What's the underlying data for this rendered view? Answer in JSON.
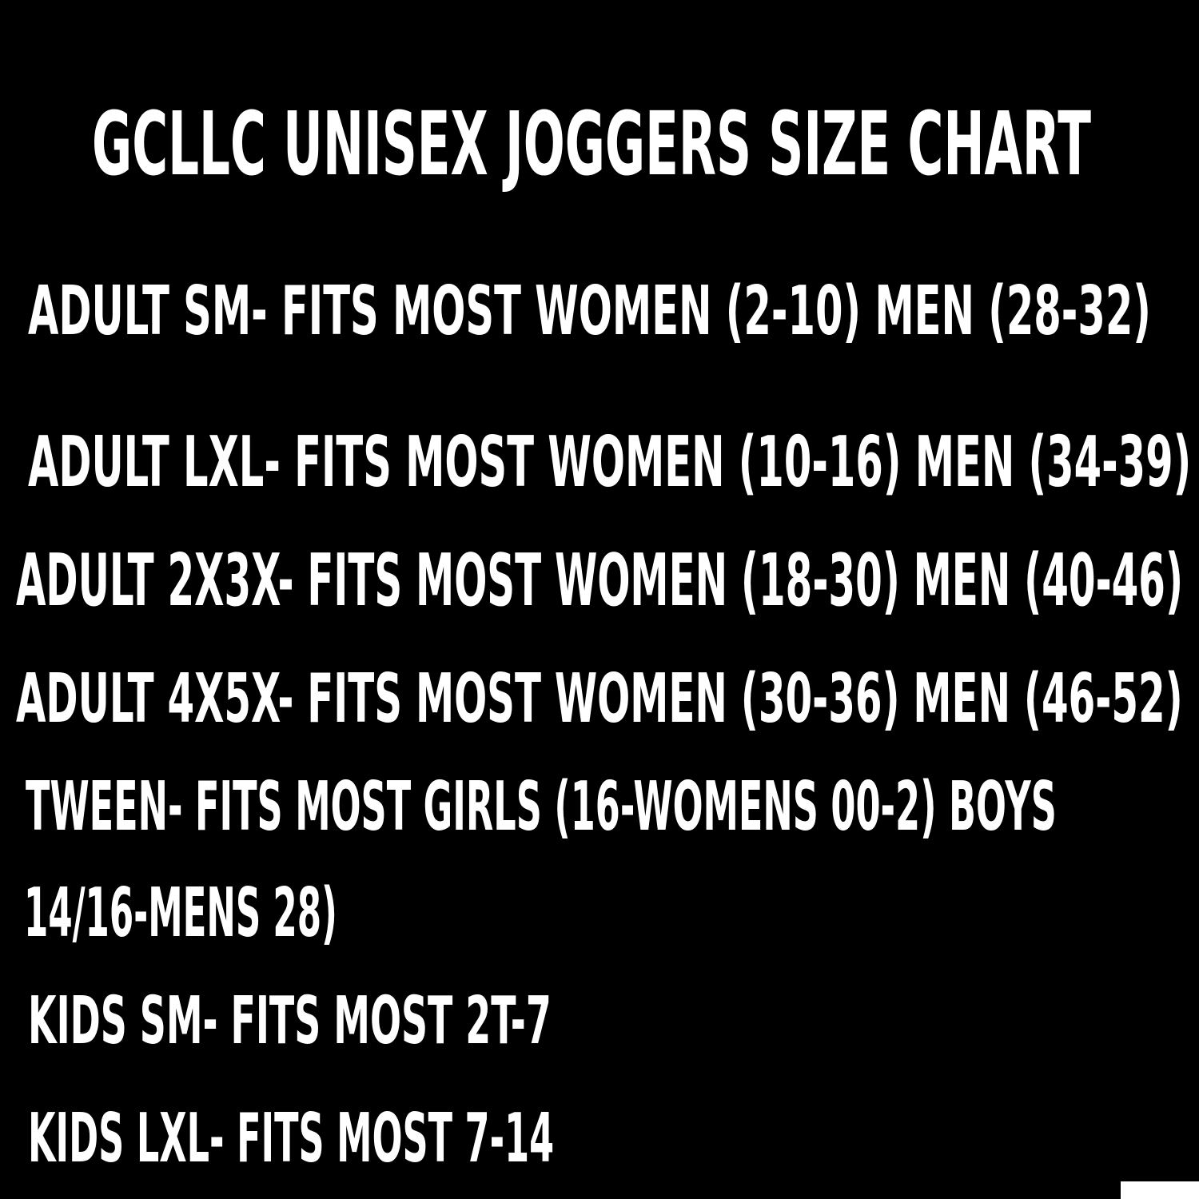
{
  "title": "GCLLC UNISEX JOGGERS SIZE CHART",
  "sizes": [
    "ADULT SM- FITS MOST WOMEN (2-10) MEN (28-32)",
    "ADULT LXL- FITS MOST WOMEN (10-16) MEN (34-39)",
    "ADULT 2X3X- FITS MOST WOMEN (18-30) MEN (40-46)",
    "ADULT 4X5X- FITS MOST WOMEN (30-36) MEN (46-52)",
    "TWEEN- FITS MOST GIRLS (16-WOMENS 00-2) BOYS",
    "14/16-MENS 28)",
    "KIDS SM- FITS MOST 2T-7",
    "KIDS LXL- FITS MOST 7-14"
  ],
  "colors": {
    "background": "#000000",
    "text": "#ffffff"
  }
}
